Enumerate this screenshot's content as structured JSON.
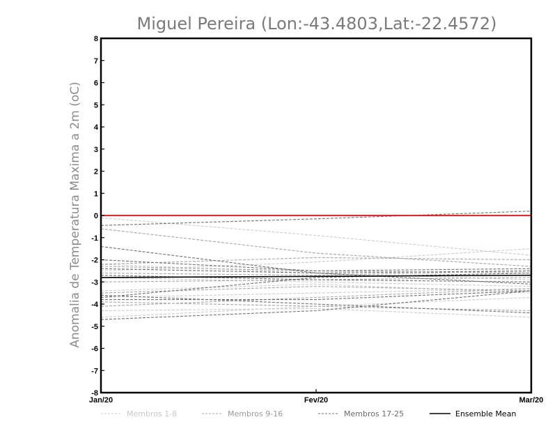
{
  "chart_data": {
    "type": "line",
    "title": "Miguel Pereira (Lon:-43.4803,Lat:-22.4572)",
    "xlabel": "",
    "ylabel": "Anomalia de Temperatura Maxima a 2m (oC)",
    "categories": [
      "Jan/20",
      "Fev/20",
      "Mar/20"
    ],
    "ylim": [
      -8,
      8
    ],
    "yticks": [
      8,
      7,
      6,
      5,
      4,
      3,
      2,
      1,
      0,
      -1,
      -2,
      -3,
      -4,
      -5,
      -6,
      -7,
      -8
    ],
    "grid": false,
    "legend_position": "bottom",
    "colors": {
      "membros_1_8": "#cccccc",
      "membros_9_16": "#a6a6a6",
      "membros_17_25": "#707070",
      "ensemble_mean": "#000000",
      "zero_line": "#ff0000"
    },
    "series": [
      {
        "name": "Membros 1-8",
        "group": "membros_1_8",
        "values": [
          -0.1,
          -0.9,
          -1.8
        ]
      },
      {
        "name": "Membros 1-8",
        "group": "membros_1_8",
        "values": [
          -2.2,
          -2.6,
          -2.9
        ]
      },
      {
        "name": "Membros 1-8",
        "group": "membros_1_8",
        "values": [
          -2.8,
          -3.0,
          -3.2
        ]
      },
      {
        "name": "Membros 1-8",
        "group": "membros_1_8",
        "values": [
          -3.4,
          -3.1,
          -3.5
        ]
      },
      {
        "name": "Membros 1-8",
        "group": "membros_1_8",
        "values": [
          -3.7,
          -3.5,
          -3.3
        ]
      },
      {
        "name": "Membros 1-8",
        "group": "membros_1_8",
        "values": [
          -4.3,
          -4.2,
          -4.6
        ]
      },
      {
        "name": "Membros 1-8",
        "group": "membros_1_8",
        "values": [
          -4.6,
          -4.1,
          -3.7
        ]
      },
      {
        "name": "Membros 1-8",
        "group": "membros_1_8",
        "values": [
          -2.5,
          -2.1,
          -1.5
        ]
      },
      {
        "name": "Membros 9-16",
        "group": "membros_9_16",
        "values": [
          -0.6,
          -1.7,
          -2.3
        ]
      },
      {
        "name": "Membros 9-16",
        "group": "membros_9_16",
        "values": [
          -2.3,
          -2.5,
          -2.6
        ]
      },
      {
        "name": "Membros 9-16",
        "group": "membros_9_16",
        "values": [
          -2.6,
          -2.7,
          -2.5
        ]
      },
      {
        "name": "Membros 9-16",
        "group": "membros_9_16",
        "values": [
          -3.0,
          -2.9,
          -2.8
        ]
      },
      {
        "name": "Membros 9-16",
        "group": "membros_9_16",
        "values": [
          -3.5,
          -3.2,
          -3.4
        ]
      },
      {
        "name": "Membros 9-16",
        "group": "membros_9_16",
        "values": [
          -3.9,
          -4.1,
          -4.3
        ]
      },
      {
        "name": "Membros 9-16",
        "group": "membros_9_16",
        "values": [
          -4.1,
          -3.7,
          -3.3
        ]
      },
      {
        "name": "Membros 9-16",
        "group": "membros_9_16",
        "values": [
          -2.2,
          -1.9,
          -2.0
        ]
      },
      {
        "name": "Membros 17-25",
        "group": "membros_17_25",
        "values": [
          -0.45,
          -0.15,
          0.2
        ]
      },
      {
        "name": "Membros 17-25",
        "group": "membros_17_25",
        "values": [
          -1.4,
          -2.6,
          -3.1
        ]
      },
      {
        "name": "Membros 17-25",
        "group": "membros_17_25",
        "values": [
          -2.0,
          -2.5,
          -2.4
        ]
      },
      {
        "name": "Membros 17-25",
        "group": "membros_17_25",
        "values": [
          -2.4,
          -2.6,
          -2.5
        ]
      },
      {
        "name": "Membros 17-25",
        "group": "membros_17_25",
        "values": [
          -2.7,
          -2.9,
          -3.0
        ]
      },
      {
        "name": "Membros 17-25",
        "group": "membros_17_25",
        "values": [
          -3.7,
          -2.8,
          -2.6
        ]
      },
      {
        "name": "Membros 17-25",
        "group": "membros_17_25",
        "values": [
          -3.8,
          -3.8,
          -3.4
        ]
      },
      {
        "name": "Membros 17-25",
        "group": "membros_17_25",
        "values": [
          -4.7,
          -4.3,
          -3.4
        ]
      },
      {
        "name": "Membros 17-25",
        "group": "membros_17_25",
        "values": [
          -3.6,
          -4.0,
          -4.4
        ]
      },
      {
        "name": "Ensemble Mean",
        "group": "ensemble_mean",
        "values": [
          -2.8,
          -2.75,
          -2.7
        ]
      }
    ],
    "reference_line": {
      "y": 0,
      "color": "#ff0000"
    },
    "legend": [
      {
        "label": "Membros 1-8",
        "group": "membros_1_8",
        "text_color": "#c8c8c8"
      },
      {
        "label": "Membros 9-16",
        "group": "membros_9_16",
        "text_color": "#9a9a9a"
      },
      {
        "label": "Membros 17-25",
        "group": "membros_17_25",
        "text_color": "#6a6a6a"
      },
      {
        "label": "Ensemble Mean",
        "group": "ensemble_mean",
        "text_color": "#000000"
      }
    ]
  }
}
